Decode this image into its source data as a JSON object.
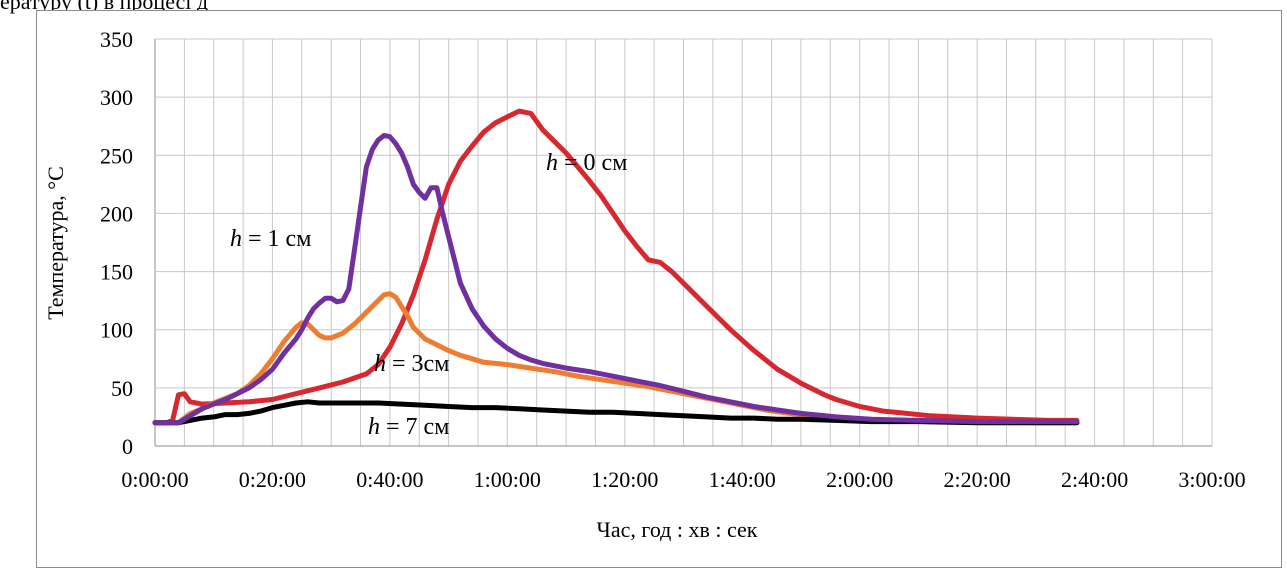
{
  "caption_fragment": "ературу (t) в процесі д",
  "chart_data": {
    "type": "line",
    "title": "",
    "xlabel": "Час,  год : хв : сек",
    "ylabel": "Температура, °С",
    "xlim": [
      0,
      180
    ],
    "ylim": [
      0,
      350
    ],
    "x_tick_labels": [
      "0:00:00",
      "0:20:00",
      "0:40:00",
      "1:00:00",
      "1:20:00",
      "1:40:00",
      "2:00:00",
      "2:20:00",
      "2:40:00",
      "3:00:00"
    ],
    "y_tick_labels": [
      "0",
      "50",
      "100",
      "150",
      "200",
      "250",
      "300",
      "350"
    ],
    "x_units": "minutes",
    "grid": true,
    "series": [
      {
        "name": "h = 0 см",
        "label_var": "h",
        "label_rest": " = 0 см",
        "color": "#d7282f",
        "points": [
          [
            0,
            20
          ],
          [
            2,
            20
          ],
          [
            3,
            22
          ],
          [
            4,
            44
          ],
          [
            5,
            45
          ],
          [
            6,
            38
          ],
          [
            8,
            36
          ],
          [
            12,
            37
          ],
          [
            16,
            38
          ],
          [
            20,
            40
          ],
          [
            24,
            45
          ],
          [
            28,
            50
          ],
          [
            32,
            55
          ],
          [
            36,
            62
          ],
          [
            38,
            70
          ],
          [
            40,
            85
          ],
          [
            42,
            105
          ],
          [
            44,
            130
          ],
          [
            46,
            160
          ],
          [
            48,
            195
          ],
          [
            50,
            225
          ],
          [
            52,
            245
          ],
          [
            54,
            258
          ],
          [
            56,
            270
          ],
          [
            58,
            278
          ],
          [
            60,
            283
          ],
          [
            62,
            288
          ],
          [
            64,
            286
          ],
          [
            66,
            272
          ],
          [
            68,
            262
          ],
          [
            70,
            252
          ],
          [
            72,
            240
          ],
          [
            74,
            228
          ],
          [
            76,
            215
          ],
          [
            78,
            200
          ],
          [
            80,
            185
          ],
          [
            82,
            172
          ],
          [
            84,
            160
          ],
          [
            86,
            158
          ],
          [
            88,
            150
          ],
          [
            90,
            140
          ],
          [
            92,
            130
          ],
          [
            94,
            120
          ],
          [
            96,
            110
          ],
          [
            98,
            100
          ],
          [
            100,
            91
          ],
          [
            102,
            82
          ],
          [
            104,
            74
          ],
          [
            106,
            66
          ],
          [
            108,
            60
          ],
          [
            110,
            54
          ],
          [
            112,
            49
          ],
          [
            114,
            44
          ],
          [
            116,
            40
          ],
          [
            118,
            37
          ],
          [
            120,
            34
          ],
          [
            124,
            30
          ],
          [
            128,
            28
          ],
          [
            132,
            26
          ],
          [
            136,
            25
          ],
          [
            140,
            24
          ],
          [
            146,
            23
          ],
          [
            152,
            22
          ],
          [
            157,
            22
          ]
        ]
      },
      {
        "name": "h = 1 см",
        "label_var": "h",
        "label_rest": " = 1 см",
        "color": "#7030a0",
        "points": [
          [
            0,
            20
          ],
          [
            4,
            20
          ],
          [
            6,
            26
          ],
          [
            8,
            32
          ],
          [
            10,
            36
          ],
          [
            12,
            40
          ],
          [
            14,
            45
          ],
          [
            16,
            50
          ],
          [
            18,
            57
          ],
          [
            20,
            66
          ],
          [
            22,
            80
          ],
          [
            24,
            92
          ],
          [
            25,
            100
          ],
          [
            26,
            110
          ],
          [
            27,
            118
          ],
          [
            28,
            123
          ],
          [
            29,
            127
          ],
          [
            30,
            127
          ],
          [
            31,
            124
          ],
          [
            32,
            125
          ],
          [
            33,
            135
          ],
          [
            34,
            170
          ],
          [
            35,
            205
          ],
          [
            36,
            240
          ],
          [
            37,
            255
          ],
          [
            38,
            263
          ],
          [
            39,
            267
          ],
          [
            40,
            266
          ],
          [
            41,
            260
          ],
          [
            42,
            252
          ],
          [
            43,
            240
          ],
          [
            44,
            225
          ],
          [
            45,
            218
          ],
          [
            46,
            213
          ],
          [
            47,
            222
          ],
          [
            48,
            222
          ],
          [
            49,
            200
          ],
          [
            50,
            180
          ],
          [
            51,
            160
          ],
          [
            52,
            140
          ],
          [
            54,
            118
          ],
          [
            56,
            103
          ],
          [
            58,
            92
          ],
          [
            60,
            84
          ],
          [
            62,
            78
          ],
          [
            64,
            74
          ],
          [
            66,
            71
          ],
          [
            70,
            67
          ],
          [
            74,
            64
          ],
          [
            78,
            60
          ],
          [
            82,
            56
          ],
          [
            86,
            52
          ],
          [
            90,
            47
          ],
          [
            94,
            42
          ],
          [
            98,
            38
          ],
          [
            102,
            34
          ],
          [
            106,
            31
          ],
          [
            110,
            28
          ],
          [
            116,
            25
          ],
          [
            122,
            23
          ],
          [
            130,
            22
          ],
          [
            140,
            21
          ],
          [
            150,
            21
          ],
          [
            157,
            21
          ]
        ]
      },
      {
        "name": "h = 3см",
        "label_var": "h",
        "label_rest": " = 3см",
        "color": "#ed7d31",
        "points": [
          [
            0,
            20
          ],
          [
            4,
            20
          ],
          [
            6,
            28
          ],
          [
            8,
            32
          ],
          [
            10,
            37
          ],
          [
            12,
            41
          ],
          [
            14,
            45
          ],
          [
            16,
            52
          ],
          [
            18,
            62
          ],
          [
            20,
            75
          ],
          [
            22,
            90
          ],
          [
            24,
            102
          ],
          [
            25,
            106
          ],
          [
            26,
            105
          ],
          [
            27,
            100
          ],
          [
            28,
            95
          ],
          [
            29,
            93
          ],
          [
            30,
            93
          ],
          [
            32,
            97
          ],
          [
            34,
            105
          ],
          [
            36,
            115
          ],
          [
            38,
            125
          ],
          [
            39,
            130
          ],
          [
            40,
            131
          ],
          [
            41,
            128
          ],
          [
            42,
            120
          ],
          [
            43,
            112
          ],
          [
            44,
            102
          ],
          [
            46,
            92
          ],
          [
            48,
            87
          ],
          [
            50,
            82
          ],
          [
            52,
            78
          ],
          [
            54,
            75
          ],
          [
            56,
            72
          ],
          [
            60,
            70
          ],
          [
            64,
            67
          ],
          [
            68,
            64
          ],
          [
            72,
            60
          ],
          [
            76,
            57
          ],
          [
            80,
            54
          ],
          [
            84,
            51
          ],
          [
            88,
            47
          ],
          [
            92,
            43
          ],
          [
            96,
            39
          ],
          [
            100,
            35
          ],
          [
            104,
            31
          ],
          [
            108,
            28
          ],
          [
            112,
            26
          ],
          [
            118,
            24
          ],
          [
            124,
            22
          ],
          [
            132,
            21
          ],
          [
            140,
            21
          ],
          [
            150,
            20
          ],
          [
            157,
            20
          ]
        ]
      },
      {
        "name": "h = 7 см",
        "label_var": "h",
        "label_rest": " = 7 см",
        "color": "#000000",
        "points": [
          [
            0,
            20
          ],
          [
            4,
            20
          ],
          [
            6,
            22
          ],
          [
            8,
            24
          ],
          [
            10,
            25
          ],
          [
            12,
            27
          ],
          [
            14,
            27
          ],
          [
            16,
            28
          ],
          [
            18,
            30
          ],
          [
            20,
            33
          ],
          [
            22,
            35
          ],
          [
            24,
            37
          ],
          [
            26,
            38
          ],
          [
            28,
            37
          ],
          [
            30,
            37
          ],
          [
            34,
            37
          ],
          [
            38,
            37
          ],
          [
            42,
            36
          ],
          [
            46,
            35
          ],
          [
            50,
            34
          ],
          [
            54,
            33
          ],
          [
            58,
            33
          ],
          [
            62,
            32
          ],
          [
            66,
            31
          ],
          [
            70,
            30
          ],
          [
            74,
            29
          ],
          [
            78,
            29
          ],
          [
            82,
            28
          ],
          [
            86,
            27
          ],
          [
            90,
            26
          ],
          [
            94,
            25
          ],
          [
            98,
            24
          ],
          [
            102,
            24
          ],
          [
            106,
            23
          ],
          [
            110,
            23
          ],
          [
            116,
            22
          ],
          [
            122,
            21
          ],
          [
            130,
            21
          ],
          [
            140,
            20
          ],
          [
            150,
            20
          ],
          [
            157,
            20
          ]
        ]
      }
    ]
  }
}
